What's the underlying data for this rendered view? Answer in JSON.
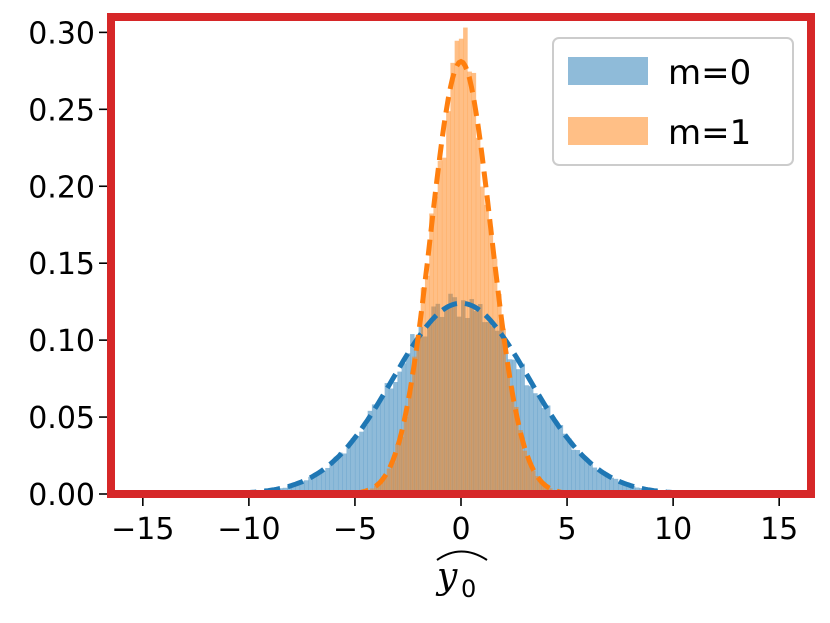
{
  "chart_data": {
    "type": "histogram",
    "xlabel": "y0",
    "xlabel_base": "y",
    "xlabel_subscript": "0",
    "xlim": [
      -16.5,
      16.5
    ],
    "ylim": [
      0,
      0.31
    ],
    "xticks": [
      -15,
      -10,
      -5,
      0,
      5,
      10,
      15
    ],
    "xtick_labels": [
      "−15",
      "−10",
      "−5",
      "0",
      "5",
      "10",
      "15"
    ],
    "yticks": [
      0.0,
      0.05,
      0.1,
      0.15,
      0.2,
      0.25,
      0.3
    ],
    "ytick_labels": [
      "0.00",
      "0.05",
      "0.10",
      "0.15",
      "0.20",
      "0.25",
      "0.30"
    ],
    "grid": false,
    "legend_position": "top-right",
    "frame_color": "#d62728",
    "bin_width": 0.2,
    "series": [
      {
        "name": "m=0",
        "color": "#1f77b4",
        "alpha": 0.5,
        "mean": 0.0,
        "std": 3.2,
        "peak_density": 0.124,
        "range": [
          -9.6,
          9.6
        ]
      },
      {
        "name": "m=1",
        "color": "#ff7f0e",
        "alpha": 0.5,
        "mean": 0.0,
        "std": 1.42,
        "peak_density": 0.281,
        "range": [
          -4.3,
          4.3
        ]
      }
    ]
  }
}
